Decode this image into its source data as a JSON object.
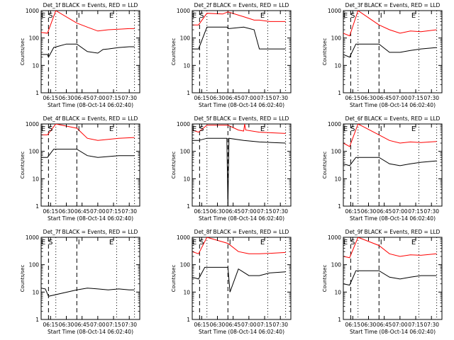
{
  "figure": {
    "background": "#ffffff",
    "colors": {
      "events": "#000000",
      "lld": "#ff0000",
      "axis": "#000000"
    }
  },
  "chart_data": [
    {
      "type": "line",
      "title": "Det_1f BLACK = Events, RED = LLD",
      "xlabel": "Start Time (08-Oct-14 06:02:40)",
      "ylabel": "Counts/sec",
      "xlim": [
        "06:06",
        "07:40"
      ],
      "ylim": [
        1,
        1000
      ],
      "yscale": "log",
      "xticks": [
        "06:15",
        "06:30",
        "06:45",
        "07:00",
        "07:15",
        "07:30"
      ],
      "yticks": [
        "1",
        "10",
        "100",
        "1000"
      ],
      "markers": [
        "E",
        "S",
        "I",
        "E"
      ],
      "dashed_lines": [
        "06:13",
        "06:40"
      ],
      "dotted_lines": [
        "06:20",
        "07:18",
        "07:35"
      ],
      "series": [
        {
          "color": "#000000",
          "x": [
            "06:06",
            "06:12",
            "06:13",
            "06:18",
            "06:30",
            "06:40",
            "06:50",
            "07:00",
            "07:05",
            "07:10",
            "07:20",
            "07:30",
            "07:35"
          ],
          "y": [
            25,
            25,
            20,
            45,
            60,
            60,
            32,
            28,
            38,
            40,
            45,
            48,
            48
          ]
        },
        {
          "color": "#ff0000",
          "x": [
            "06:06",
            "06:12",
            "06:20",
            "06:40",
            "06:50",
            "07:00",
            "07:10",
            "07:20",
            "07:30",
            "07:35"
          ],
          "y": [
            160,
            150,
            1000,
            350,
            250,
            180,
            200,
            210,
            220,
            220
          ]
        }
      ]
    },
    {
      "type": "line",
      "title": "Det_2f BLACK = Events, RED = LLD",
      "xlabel": "Start Time (08-Oct-14 06:02:40)",
      "ylabel": "Counts/sec",
      "xlim": [
        "06:06",
        "07:40"
      ],
      "ylim": [
        1,
        1000
      ],
      "yscale": "log",
      "xticks": [
        "06:15",
        "06:30",
        "06:45",
        "07:00",
        "07:15",
        "07:30"
      ],
      "yticks": [
        "1",
        "10",
        "100",
        "1000"
      ],
      "markers": [
        "E",
        "S",
        "I",
        "E"
      ],
      "dashed_lines": [
        "06:13",
        "06:40"
      ],
      "dotted_lines": [
        "06:20",
        "07:18",
        "07:35"
      ],
      "series": [
        {
          "color": "#000000",
          "x": [
            "06:06",
            "06:12",
            "06:20",
            "06:39",
            "06:41",
            "06:55",
            "07:05",
            "07:10",
            "07:20",
            "07:35"
          ],
          "y": [
            40,
            40,
            250,
            250,
            220,
            250,
            200,
            40,
            40,
            40
          ]
        },
        {
          "color": "#ff0000",
          "x": [
            "06:06",
            "06:12",
            "06:20",
            "06:35",
            "06:40",
            "06:55",
            "07:05",
            "07:10",
            "07:20",
            "07:35"
          ],
          "y": [
            300,
            300,
            800,
            750,
            900,
            600,
            450,
            450,
            400,
            400
          ]
        }
      ]
    },
    {
      "type": "line",
      "title": "Det_3f BLACK = Events, RED = LLD",
      "xlabel": "Start Time (08-Oct-14 06:02:40)",
      "ylabel": "Counts/sec",
      "xlim": [
        "06:06",
        "07:40"
      ],
      "ylim": [
        1,
        1000
      ],
      "yscale": "log",
      "xticks": [
        "06:15",
        "06:30",
        "06:45",
        "07:00",
        "07:15",
        "07:30"
      ],
      "yticks": [
        "1",
        "10",
        "100",
        "1000"
      ],
      "markers": [
        "E",
        "S",
        "I",
        "E"
      ],
      "dashed_lines": [
        "06:13",
        "06:40"
      ],
      "dotted_lines": [
        "06:20",
        "07:18",
        "07:35"
      ],
      "series": [
        {
          "color": "#000000",
          "x": [
            "06:06",
            "06:12",
            "06:18",
            "06:40",
            "06:50",
            "07:00",
            "07:10",
            "07:20",
            "07:35"
          ],
          "y": [
            25,
            20,
            60,
            60,
            30,
            30,
            35,
            40,
            45
          ]
        },
        {
          "color": "#ff0000",
          "x": [
            "06:06",
            "06:12",
            "06:20",
            "06:40",
            "06:50",
            "07:00",
            "07:10",
            "07:20",
            "07:35"
          ],
          "y": [
            150,
            120,
            1000,
            300,
            200,
            150,
            180,
            170,
            200
          ]
        }
      ]
    },
    {
      "type": "line",
      "title": "Det_4f BLACK = Events, RED = LLD",
      "xlabel": "Start Time (08-Oct-14 06:02:40)",
      "ylabel": "Counts/sec",
      "xlim": [
        "06:06",
        "07:40"
      ],
      "ylim": [
        1,
        1000
      ],
      "yscale": "log",
      "xticks": [
        "06:15",
        "06:30",
        "06:45",
        "07:00",
        "07:15",
        "07:30"
      ],
      "yticks": [
        "1",
        "10",
        "100",
        "1000"
      ],
      "markers": [
        "E",
        "S",
        "I",
        "E"
      ],
      "dashed_lines": [
        "06:13",
        "06:40"
      ],
      "dotted_lines": [
        "06:20",
        "07:18",
        "07:35"
      ],
      "series": [
        {
          "color": "#000000",
          "x": [
            "06:06",
            "06:12",
            "06:18",
            "06:40",
            "06:50",
            "07:00",
            "07:20",
            "07:35"
          ],
          "y": [
            60,
            60,
            120,
            120,
            70,
            60,
            70,
            70
          ]
        },
        {
          "color": "#ff0000",
          "x": [
            "06:06",
            "06:12",
            "06:20",
            "06:40",
            "06:50",
            "07:00",
            "07:20",
            "07:35"
          ],
          "y": [
            400,
            400,
            1000,
            700,
            300,
            250,
            300,
            320
          ]
        }
      ]
    },
    {
      "type": "line",
      "title": "Det_5f BLACK = Events, RED = LLD",
      "xlabel": "Start Time (08-Oct-14 06:02:40)",
      "ylabel": "Counts/sec",
      "xlim": [
        "06:06",
        "07:40"
      ],
      "ylim": [
        1,
        1000
      ],
      "yscale": "log",
      "xticks": [
        "06:15",
        "06:30",
        "06:45",
        "07:00",
        "07:15",
        "07:30"
      ],
      "yticks": [
        "1",
        "10",
        "100",
        "1000"
      ],
      "markers": [
        "E",
        "S",
        "I",
        "E"
      ],
      "dashed_lines": [
        "06:13",
        "06:40"
      ],
      "dotted_lines": [
        "06:20",
        "07:18",
        "07:35"
      ],
      "series": [
        {
          "color": "#000000",
          "x": [
            "06:06",
            "06:12",
            "06:20",
            "06:39",
            "06:40",
            "06:41",
            "06:55",
            "07:10",
            "07:35"
          ],
          "y": [
            250,
            250,
            300,
            300,
            1,
            300,
            250,
            220,
            200
          ]
        },
        {
          "color": "#ff0000",
          "x": [
            "06:06",
            "06:12",
            "06:20",
            "06:40",
            "06:50",
            "06:55",
            "06:56",
            "06:57",
            "07:10",
            "07:35"
          ],
          "y": [
            600,
            500,
            900,
            900,
            600,
            550,
            1000,
            600,
            500,
            450
          ]
        }
      ]
    },
    {
      "type": "line",
      "title": "Det_6f BLACK = Events, RED = LLD",
      "xlabel": "Start Time (08-Oct-14 06:02:40)",
      "ylabel": "Counts/sec",
      "xlim": [
        "06:06",
        "07:40"
      ],
      "ylim": [
        1,
        1000
      ],
      "yscale": "log",
      "xticks": [
        "06:15",
        "06:30",
        "06:45",
        "07:00",
        "07:15",
        "07:30"
      ],
      "yticks": [
        "1",
        "10",
        "100",
        "1000"
      ],
      "markers": [
        "E",
        "S",
        "I",
        "E"
      ],
      "dashed_lines": [
        "06:13",
        "06:40"
      ],
      "dotted_lines": [
        "06:20",
        "07:18",
        "07:35"
      ],
      "series": [
        {
          "color": "#000000",
          "x": [
            "06:06",
            "06:12",
            "06:18",
            "06:40",
            "06:50",
            "07:00",
            "07:10",
            "07:20",
            "07:35"
          ],
          "y": [
            35,
            30,
            60,
            60,
            35,
            30,
            35,
            40,
            45
          ]
        },
        {
          "color": "#ff0000",
          "x": [
            "06:06",
            "06:12",
            "06:20",
            "06:40",
            "06:50",
            "07:00",
            "07:10",
            "07:20",
            "07:35"
          ],
          "y": [
            200,
            150,
            1000,
            400,
            250,
            200,
            220,
            210,
            230
          ]
        }
      ]
    },
    {
      "type": "line",
      "title": "Det_7f BLACK = Events, RED = LLD",
      "xlabel": "Start Time (08-Oct-14 06:02:40)",
      "ylabel": "Counts/sec",
      "xlim": [
        "06:06",
        "07:40"
      ],
      "ylim": [
        1,
        1000
      ],
      "yscale": "log",
      "xticks": [
        "06:15",
        "06:30",
        "06:45",
        "07:00",
        "07:15",
        "07:30"
      ],
      "yticks": [
        "1",
        "10",
        "100",
        "1000"
      ],
      "markers": [
        "E",
        "S",
        "I",
        "E"
      ],
      "dashed_lines": [
        "06:13",
        "06:40"
      ],
      "dotted_lines": [
        "06:20",
        "07:18",
        "07:35"
      ],
      "series": [
        {
          "color": "#000000",
          "x": [
            "06:06",
            "06:10",
            "06:13",
            "06:40",
            "06:50",
            "07:00",
            "07:10",
            "07:20",
            "07:30",
            "07:35"
          ],
          "y": [
            14,
            13,
            7,
            12,
            14,
            13,
            12,
            13,
            12,
            12
          ]
        }
      ]
    },
    {
      "type": "line",
      "title": "Det_8f BLACK = Events, RED = LLD",
      "xlabel": "Start Time (08-Oct-14 06:02:40)",
      "ylabel": "Counts/sec",
      "xlim": [
        "06:06",
        "07:40"
      ],
      "ylim": [
        1,
        1000
      ],
      "yscale": "log",
      "xticks": [
        "06:15",
        "06:30",
        "06:45",
        "07:00",
        "07:15",
        "07:30"
      ],
      "yticks": [
        "1",
        "10",
        "100",
        "1000"
      ],
      "markers": [
        "E",
        "S",
        "I",
        "E"
      ],
      "dashed_lines": [
        "06:13",
        "06:40"
      ],
      "dotted_lines": [
        "06:20",
        "07:18",
        "07:35"
      ],
      "series": [
        {
          "color": "#000000",
          "x": [
            "06:06",
            "06:12",
            "06:18",
            "06:40",
            "06:42",
            "06:50",
            "07:00",
            "07:10",
            "07:20",
            "07:35"
          ],
          "y": [
            35,
            30,
            80,
            80,
            10,
            70,
            40,
            40,
            50,
            55
          ]
        },
        {
          "color": "#ff0000",
          "x": [
            "06:06",
            "06:12",
            "06:20",
            "06:40",
            "06:50",
            "07:00",
            "07:10",
            "07:20",
            "07:35"
          ],
          "y": [
            300,
            250,
            1000,
            600,
            300,
            250,
            250,
            260,
            280
          ]
        }
      ]
    },
    {
      "type": "line",
      "title": "Det_9f BLACK = Events, RED = LLD",
      "xlabel": "Start Time (08-Oct-14 06:02:40)",
      "ylabel": "Counts/sec",
      "xlim": [
        "06:06",
        "07:40"
      ],
      "ylim": [
        1,
        1000
      ],
      "yscale": "log",
      "xticks": [
        "06:15",
        "06:30",
        "06:45",
        "07:00",
        "07:15",
        "07:30"
      ],
      "yticks": [
        "1",
        "10",
        "100",
        "1000"
      ],
      "markers": [
        "E",
        "S",
        "I",
        "E"
      ],
      "dashed_lines": [
        "06:13",
        "06:40"
      ],
      "dotted_lines": [
        "06:20",
        "07:18",
        "07:35"
      ],
      "series": [
        {
          "color": "#000000",
          "x": [
            "06:06",
            "06:12",
            "06:18",
            "06:40",
            "06:50",
            "07:00",
            "07:10",
            "07:20",
            "07:35"
          ],
          "y": [
            20,
            18,
            60,
            60,
            35,
            30,
            35,
            40,
            40
          ]
        },
        {
          "color": "#ff0000",
          "x": [
            "06:06",
            "06:12",
            "06:20",
            "06:40",
            "06:50",
            "07:00",
            "07:10",
            "07:20",
            "07:35"
          ],
          "y": [
            200,
            180,
            1000,
            500,
            250,
            200,
            230,
            220,
            250
          ]
        }
      ]
    }
  ]
}
